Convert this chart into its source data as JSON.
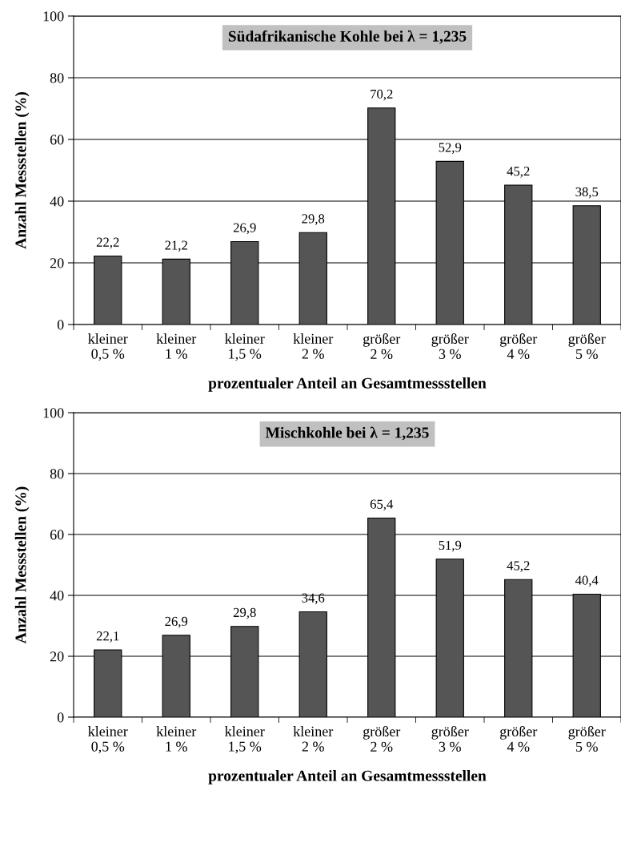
{
  "chart_data": [
    {
      "type": "bar",
      "title": "Südafrikanische Kohle bei λ = 1,235",
      "xlabel": "prozentualer Anteil an Gesamtmessstellen",
      "ylabel": "Anzahl Messstellen (%)",
      "categories": [
        "kleiner\n0,5 %",
        "kleiner\n1 %",
        "kleiner\n1,5 %",
        "kleiner\n2 %",
        "größer\n2 %",
        "größer\n3 %",
        "größer\n4 %",
        "größer\n5 %"
      ],
      "values": [
        22.2,
        21.2,
        26.9,
        29.8,
        70.2,
        52.9,
        45.2,
        38.5
      ],
      "value_labels": [
        "22,2",
        "21,2",
        "26,9",
        "29,8",
        "70,2",
        "52,9",
        "45,2",
        "38,5"
      ],
      "color": "#555555",
      "ylim": [
        0,
        100
      ],
      "yticks": [
        0,
        20,
        40,
        60,
        80,
        100
      ],
      "grid": "y"
    },
    {
      "type": "bar",
      "title": "Mischkohle bei λ = 1,235",
      "xlabel": "prozentualer Anteil an Gesamtmessstellen",
      "ylabel": "Anzahl Messstellen (%)",
      "categories": [
        "kleiner\n0,5 %",
        "kleiner\n1 %",
        "kleiner\n1,5 %",
        "kleiner\n2 %",
        "größer\n2 %",
        "größer\n3 %",
        "größer\n4 %",
        "größer\n5 %"
      ],
      "values": [
        22.1,
        26.9,
        29.8,
        34.6,
        65.4,
        51.9,
        45.2,
        40.4
      ],
      "value_labels": [
        "22,1",
        "26,9",
        "29,8",
        "34,6",
        "65,4",
        "51,9",
        "45,2",
        "40,4"
      ],
      "color": "#555555",
      "ylim": [
        0,
        100
      ],
      "yticks": [
        0,
        20,
        40,
        60,
        80,
        100
      ],
      "grid": "y"
    }
  ]
}
